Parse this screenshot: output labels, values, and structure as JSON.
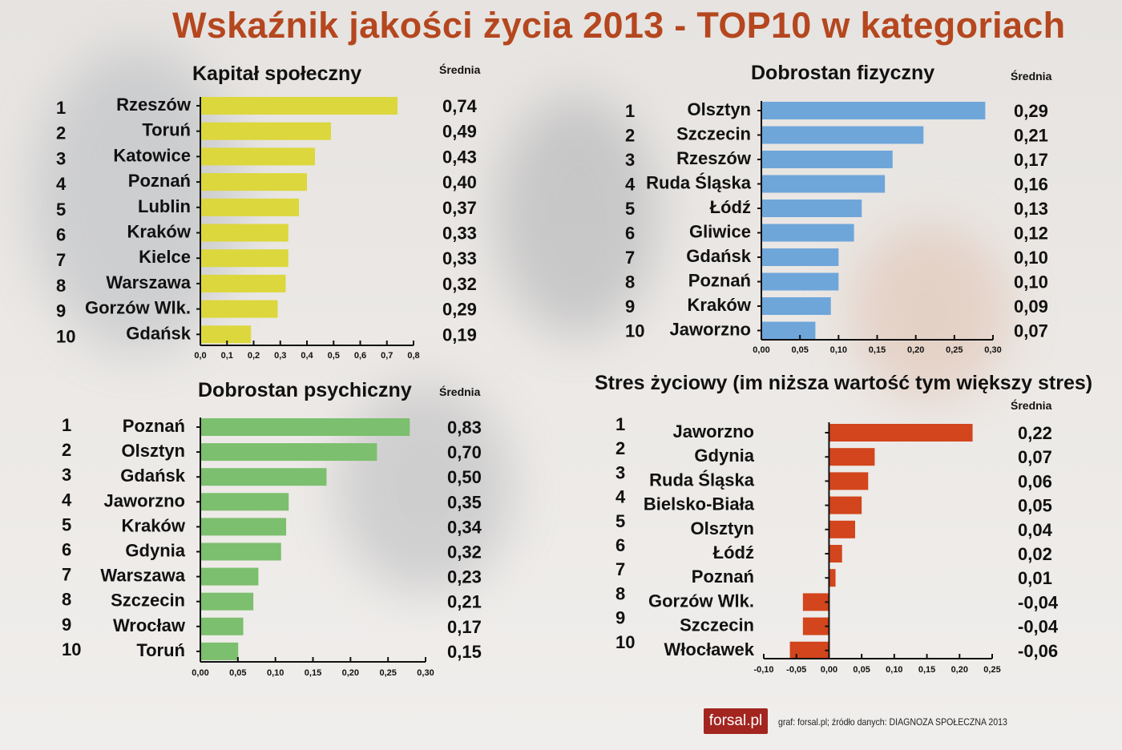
{
  "title": "Wskaźnik jakości życia 2013 - TOP10 w kategoriach",
  "footer": {
    "logo": "forsal.pl",
    "credit": "graf: forsal.pl;   źródło danych: DIAGNOZA SPOŁECZNA 2013"
  },
  "chart_data": [
    {
      "type": "bar",
      "orientation": "horizontal",
      "title": "Kapitał społeczny",
      "value_header": "Średnia",
      "color": "#dcd73c",
      "ranks": [
        "1",
        "2",
        "3",
        "4",
        "5",
        "6",
        "7",
        "8",
        "9",
        "10"
      ],
      "categories": [
        "Rzeszów",
        "Toruń",
        "Katowice",
        "Poznań",
        "Lublin",
        "Kraków",
        "Kielce",
        "Warszawa",
        "Gorzów Wlk.",
        "Gdańsk"
      ],
      "values": [
        0.74,
        0.49,
        0.43,
        0.4,
        0.37,
        0.33,
        0.33,
        0.32,
        0.29,
        0.19
      ],
      "value_labels": [
        "0,74",
        "0,49",
        "0,43",
        "0,40",
        "0,37",
        "0,33",
        "0,33",
        "0,32",
        "0,29",
        "0,19"
      ],
      "xlim": [
        0,
        0.8
      ],
      "ticks": [
        "0,0",
        "0,1",
        "0,2",
        "0,3",
        "0,4",
        "0,5",
        "0,6",
        "0,7",
        "0,8"
      ]
    },
    {
      "type": "bar",
      "orientation": "horizontal",
      "title": "Dobrostan fizyczny",
      "value_header": "Średnia",
      "color": "#6fa6da",
      "ranks": [
        "1",
        "2",
        "3",
        "4",
        "5",
        "6",
        "7",
        "8",
        "9",
        "10"
      ],
      "categories": [
        "Olsztyn",
        "Szczecin",
        "Rzeszów",
        "Ruda Śląska",
        "Łódź",
        "Gliwice",
        "Gdańsk",
        "Poznań",
        "Kraków",
        "Jaworzno"
      ],
      "values": [
        0.29,
        0.21,
        0.17,
        0.16,
        0.13,
        0.12,
        0.1,
        0.1,
        0.09,
        0.07
      ],
      "value_labels": [
        "0,29",
        "0,21",
        "0,17",
        "0,16",
        "0,13",
        "0,12",
        "0,10",
        "0,10",
        "0,09",
        "0,07"
      ],
      "xlim": [
        0,
        0.3
      ],
      "ticks": [
        "0,00",
        "0,05",
        "0,10",
        "0,15",
        "0,20",
        "0,25",
        "0,30"
      ]
    },
    {
      "type": "bar",
      "orientation": "horizontal",
      "title": "Dobrostan psychiczny",
      "value_header": "Średnia",
      "color": "#7cbf6e",
      "ranks": [
        "1",
        "2",
        "3",
        "4",
        "5",
        "6",
        "7",
        "8",
        "9",
        "10"
      ],
      "categories": [
        "Poznań",
        "Olsztyn",
        "Gdańsk",
        "Jaworzno",
        "Kraków",
        "Gdynia",
        "Warszawa",
        "Szczecin",
        "Wrocław",
        "Toruń"
      ],
      "values": [
        0.83,
        0.7,
        0.5,
        0.35,
        0.34,
        0.32,
        0.23,
        0.21,
        0.17,
        0.15
      ],
      "value_labels": [
        "0,83",
        "0,70",
        "0,50",
        "0,35",
        "0,34",
        "0,32",
        "0,23",
        "0,21",
        "0,17",
        "0,15"
      ],
      "xlim": [
        0,
        0.3
      ],
      "ticks": [
        "0,00",
        "0,05",
        "0,10",
        "0,15",
        "0,20",
        "0,25",
        "0,30"
      ]
    },
    {
      "type": "bar",
      "orientation": "horizontal",
      "title": "Stres życiowy (im niższa wartość tym większy stres)",
      "value_header": "Średnia",
      "color": "#d2451d",
      "ranks": [
        "1",
        "2",
        "3",
        "4",
        "5",
        "6",
        "7",
        "8",
        "9",
        "10"
      ],
      "categories": [
        "Jaworzno",
        "Gdynia",
        "Ruda Śląska",
        "Bielsko-Biała",
        "Olsztyn",
        "Łódź",
        "Poznań",
        "Gorzów Wlk.",
        "Szczecin",
        "Włocławek"
      ],
      "values": [
        0.22,
        0.07,
        0.06,
        0.05,
        0.04,
        0.02,
        0.01,
        -0.04,
        -0.04,
        -0.06
      ],
      "value_labels": [
        "0,22",
        "0,07",
        "0,06",
        "0,05",
        "0,04",
        "0,02",
        "0,01",
        "-0,04",
        "-0,04",
        "-0,06"
      ],
      "xlim": [
        -0.1,
        0.25
      ],
      "ticks": [
        "-0,10",
        "-0,05",
        "0,00",
        "0,05",
        "0,10",
        "0,15",
        "0,20",
        "0,25"
      ]
    }
  ]
}
